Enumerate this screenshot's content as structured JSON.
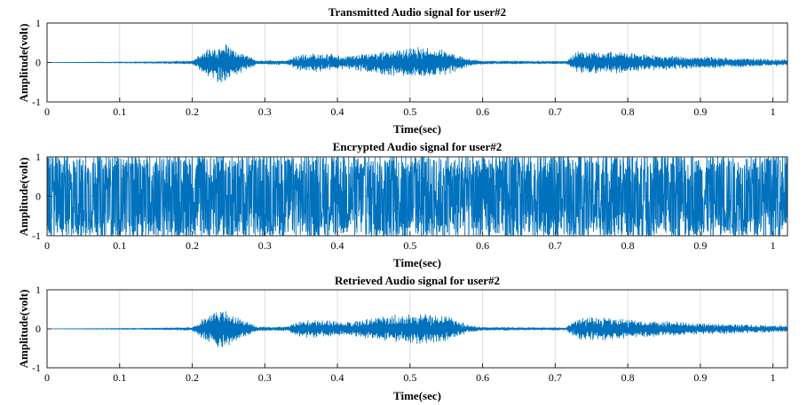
{
  "chart_data": [
    {
      "type": "line",
      "title": "Transmitted Audio signal for user#2",
      "xlabel": "Time(sec)",
      "ylabel": "Amplitude(volt)",
      "xlim": [
        0,
        1.02
      ],
      "ylim": [
        -1,
        1
      ],
      "xticks": [
        "0",
        "0.1",
        "0.2",
        "0.3",
        "0.4",
        "0.5",
        "0.6",
        "0.7",
        "0.8",
        "0.9",
        "1"
      ],
      "yticks": [
        "1",
        "0",
        "-1"
      ],
      "grid": true,
      "series_color": "#0072bd",
      "envelope": [
        {
          "x": 0.0,
          "y": 0.0
        },
        {
          "x": 0.15,
          "y": 0.02
        },
        {
          "x": 0.2,
          "y": 0.04
        },
        {
          "x": 0.215,
          "y": 0.25
        },
        {
          "x": 0.24,
          "y": 0.5
        },
        {
          "x": 0.26,
          "y": 0.3
        },
        {
          "x": 0.29,
          "y": 0.05
        },
        {
          "x": 0.33,
          "y": 0.05
        },
        {
          "x": 0.35,
          "y": 0.2
        },
        {
          "x": 0.38,
          "y": 0.22
        },
        {
          "x": 0.41,
          "y": 0.15
        },
        {
          "x": 0.43,
          "y": 0.2
        },
        {
          "x": 0.47,
          "y": 0.32
        },
        {
          "x": 0.51,
          "y": 0.36
        },
        {
          "x": 0.55,
          "y": 0.3
        },
        {
          "x": 0.58,
          "y": 0.1
        },
        {
          "x": 0.6,
          "y": 0.04
        },
        {
          "x": 0.715,
          "y": 0.03
        },
        {
          "x": 0.73,
          "y": 0.25
        },
        {
          "x": 0.76,
          "y": 0.28
        },
        {
          "x": 0.82,
          "y": 0.2
        },
        {
          "x": 0.9,
          "y": 0.14
        },
        {
          "x": 1.02,
          "y": 0.07
        }
      ]
    },
    {
      "type": "line",
      "title": "Encrypted Audio signal for user#2",
      "xlabel": "Time(sec)",
      "ylabel": "Amplitude(volt)",
      "xlim": [
        0,
        1.02
      ],
      "ylim": [
        -1,
        1
      ],
      "xticks": [
        "0",
        "0.1",
        "0.2",
        "0.3",
        "0.4",
        "0.5",
        "0.6",
        "0.7",
        "0.8",
        "0.9",
        "1"
      ],
      "yticks": [
        "1",
        "0",
        "-1"
      ],
      "grid": true,
      "series_color": "#0072bd",
      "envelope": [
        {
          "x": 0.0,
          "y": 1.0
        },
        {
          "x": 1.02,
          "y": 1.0
        }
      ]
    },
    {
      "type": "line",
      "title": "Retrieved Audio signal for user#2",
      "xlabel": "Time(sec)",
      "ylabel": "Amplitude(volt)",
      "xlim": [
        0,
        1.02
      ],
      "ylim": [
        -1,
        1
      ],
      "xticks": [
        "0",
        "0.1",
        "0.2",
        "0.3",
        "0.4",
        "0.5",
        "0.6",
        "0.7",
        "0.8",
        "0.9",
        "1"
      ],
      "yticks": [
        "1",
        "0",
        "-1"
      ],
      "grid": true,
      "series_color": "#0072bd",
      "envelope": [
        {
          "x": 0.0,
          "y": 0.0
        },
        {
          "x": 0.15,
          "y": 0.02
        },
        {
          "x": 0.2,
          "y": 0.04
        },
        {
          "x": 0.215,
          "y": 0.25
        },
        {
          "x": 0.24,
          "y": 0.5
        },
        {
          "x": 0.26,
          "y": 0.3
        },
        {
          "x": 0.29,
          "y": 0.05
        },
        {
          "x": 0.33,
          "y": 0.05
        },
        {
          "x": 0.35,
          "y": 0.2
        },
        {
          "x": 0.38,
          "y": 0.22
        },
        {
          "x": 0.41,
          "y": 0.15
        },
        {
          "x": 0.43,
          "y": 0.2
        },
        {
          "x": 0.47,
          "y": 0.32
        },
        {
          "x": 0.51,
          "y": 0.36
        },
        {
          "x": 0.55,
          "y": 0.3
        },
        {
          "x": 0.58,
          "y": 0.1
        },
        {
          "x": 0.6,
          "y": 0.04
        },
        {
          "x": 0.715,
          "y": 0.03
        },
        {
          "x": 0.73,
          "y": 0.25
        },
        {
          "x": 0.76,
          "y": 0.28
        },
        {
          "x": 0.82,
          "y": 0.2
        },
        {
          "x": 0.9,
          "y": 0.14
        },
        {
          "x": 1.02,
          "y": 0.07
        }
      ]
    }
  ]
}
